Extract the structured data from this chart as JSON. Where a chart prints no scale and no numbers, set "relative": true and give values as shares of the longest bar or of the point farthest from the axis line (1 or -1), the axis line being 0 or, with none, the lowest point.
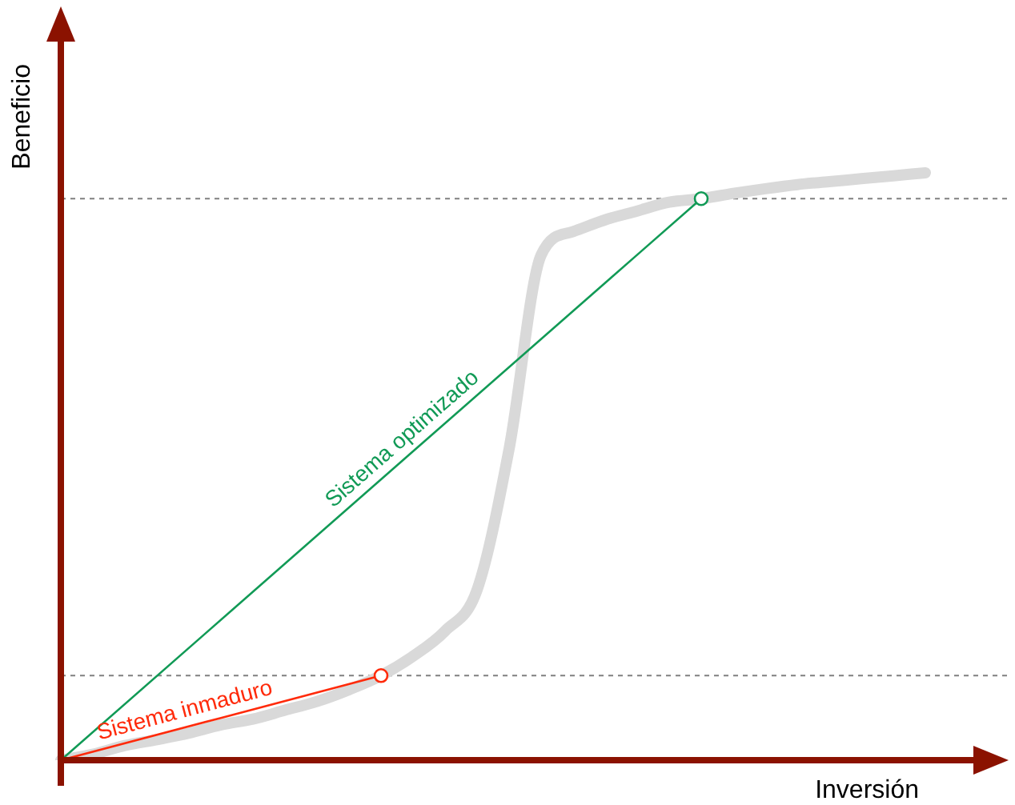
{
  "chart_data": {
    "type": "line",
    "relative": true,
    "xlabel": "Inversión",
    "ylabel": "Beneficio",
    "legend": false,
    "grid": false,
    "categories": [
      null,
      null,
      null,
      null,
      null,
      null,
      null,
      null,
      null,
      null,
      null,
      null,
      null,
      null,
      null,
      null,
      null,
      null,
      null,
      null,
      null,
      null,
      null,
      null,
      null,
      null,
      null,
      null
    ],
    "ref_lines": [
      {
        "axis": "y",
        "value": 0.956,
        "color": "#808080",
        "line_style": "dashed"
      },
      {
        "axis": "y",
        "value": 0.144,
        "color": "#808080",
        "line_style": "dashed"
      }
    ],
    "series": [
      {
        "color": "#d9d9d9",
        "values": [
          0,
          0.01,
          0.025,
          0.035,
          0.046,
          0.06,
          0.07,
          0.085,
          0.1,
          0.12,
          0.144,
          0.177,
          0.22,
          0.29,
          0.53,
          0.86,
          0.9,
          0.92,
          0.935,
          0.95,
          0.956,
          0.965,
          0.973,
          0.98,
          0.985,
          0.99,
          0.995,
          1
        ]
      },
      {
        "name": "Sistema inmaduro",
        "color": "#ff2a0a",
        "marker": "circle",
        "values": [
          0,
          null,
          null,
          null,
          null,
          null,
          null,
          null,
          null,
          null,
          0.144,
          null,
          null,
          null,
          null,
          null,
          null,
          null,
          null,
          null,
          null,
          null,
          null,
          null,
          null,
          null,
          null,
          null
        ]
      },
      {
        "name": "Sistema optimizado",
        "color": "#119a56",
        "marker": "circle",
        "values": [
          0,
          null,
          null,
          null,
          null,
          null,
          null,
          null,
          null,
          null,
          null,
          null,
          null,
          null,
          null,
          null,
          null,
          null,
          null,
          null,
          0.956,
          null,
          null,
          null,
          null,
          null,
          null,
          null
        ]
      }
    ]
  }
}
